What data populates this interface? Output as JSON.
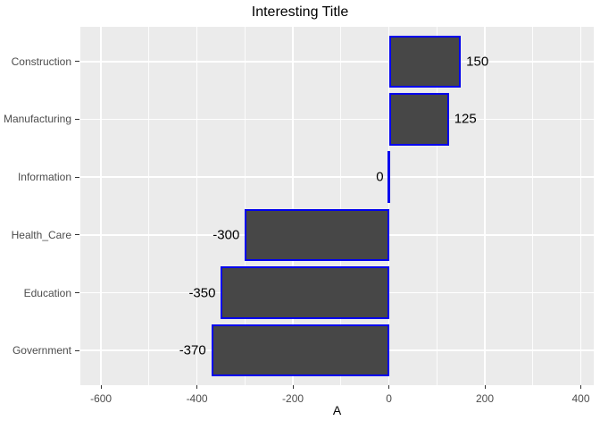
{
  "chart_data": {
    "type": "bar",
    "orientation": "horizontal",
    "title": "Interesting Title",
    "xlabel": "A",
    "ylabel": "",
    "categories": [
      "Construction",
      "Manufacturing",
      "Information",
      "Health_Care",
      "Education",
      "Government"
    ],
    "values": [
      150,
      125,
      0,
      -300,
      -350,
      -370
    ],
    "bar_labels": [
      "150",
      "125",
      "0",
      "-300",
      "-350",
      "-370"
    ],
    "x_major_ticks": [
      -600,
      -400,
      -200,
      0,
      200,
      400
    ],
    "x_major_tick_labels": [
      "-600",
      "-400",
      "-200",
      "0",
      "200",
      "400"
    ],
    "x_minor_ticks": [
      -500,
      -300,
      -100,
      100,
      300
    ],
    "xlim": [
      -643,
      427
    ],
    "grid": true,
    "legend": "none",
    "colors": {
      "page_background": "#FFFFFF",
      "panel_background": "#EBEBEB",
      "gridline": "#FFFFFF",
      "bar_fill": "#474747",
      "bar_border": "#0000EE",
      "axis_text": "#4D4D4D",
      "tick_mark": "#333333",
      "title_text": "#000000",
      "value_label_text": "#000000"
    }
  }
}
